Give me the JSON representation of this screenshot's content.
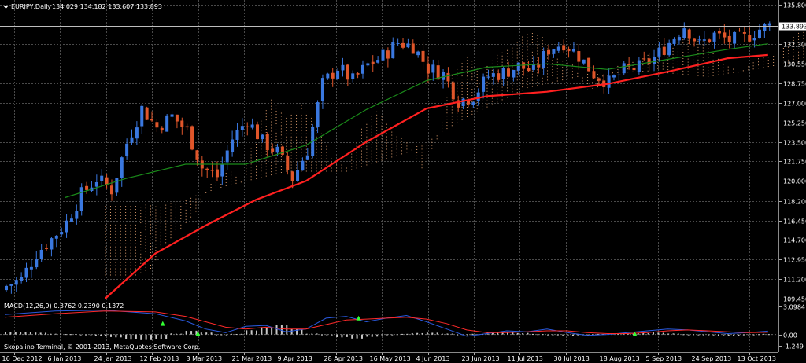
{
  "symbol_header": {
    "symbol": "EURJPY,Daily",
    "values": "134.029 134.182 133.607 133.893"
  },
  "macd_header": "MACD(12,26,9) 0.3762 0.2390 0.1372",
  "copyright": "Skopalino Terminal, © 2001-2013, MetaQuotes Software Corp.",
  "colors": {
    "background": "#000000",
    "grid": "#4a4a4a",
    "bull": "#3a78e0",
    "bear": "#e0562a",
    "ma_fast": "#1a8a1a",
    "ma_slow": "#ff2020",
    "cloud": "#e0a070",
    "macd_main": "#2a5ae0",
    "macd_signal": "#ff2a2a",
    "macd_hist": "#c8c8c8",
    "arrow": "#33ff33"
  },
  "chart_data": [
    {
      "type": "candlestick",
      "title": "EURJPY,Daily",
      "ylim": [
        109.45,
        135.8
      ],
      "y_ticks": [
        "135.800",
        "132.300",
        "130.550",
        "128.750",
        "127.000",
        "125.250",
        "123.500",
        "121.750",
        "120.000",
        "118.200",
        "116.450",
        "114.700",
        "112.950",
        "111.200",
        "109.450"
      ],
      "current_price": "133.893",
      "x_ticks": [
        "16 Dec 2012",
        "6 Jan 2013",
        "24 Jan 2013",
        "12 Feb 2013",
        "3 Mar 2013",
        "21 Mar 2013",
        "9 Apr 2013",
        "28 Apr 2013",
        "16 May 2013",
        "4 Jun 2013",
        "23 Jun 2013",
        "11 Jul 2013",
        "30 Jul 2013",
        "18 Aug 2013",
        "5 Sep 2013",
        "24 Sep 2013",
        "13 Oct 2013"
      ],
      "close_path": [
        [
          0,
          110.6
        ],
        [
          3,
          111.2
        ],
        [
          6,
          113.5
        ],
        [
          9,
          114.8
        ],
        [
          12,
          116.3
        ],
        [
          15,
          118.8
        ],
        [
          18,
          120.2
        ],
        [
          21,
          119.2
        ],
        [
          24,
          123.4
        ],
        [
          27,
          126.5
        ],
        [
          30,
          124.8
        ],
        [
          33,
          125.8
        ],
        [
          36,
          124.5
        ],
        [
          39,
          121.2
        ],
        [
          42,
          120.4
        ],
        [
          45,
          123.8
        ],
        [
          48,
          125.5
        ],
        [
          51,
          123.5
        ],
        [
          54,
          122.6
        ],
        [
          57,
          120.2
        ],
        [
          60,
          122.8
        ],
        [
          63,
          128.7
        ],
        [
          66,
          130.2
        ],
        [
          69,
          129.0
        ],
        [
          72,
          130.4
        ],
        [
          75,
          131.2
        ],
        [
          78,
          132.4
        ],
        [
          81,
          132.1
        ],
        [
          84,
          130.1
        ],
        [
          87,
          129.6
        ],
        [
          90,
          127.2
        ],
        [
          93,
          127.6
        ],
        [
          96,
          129.4
        ],
        [
          99,
          129.7
        ],
        [
          102,
          130.3
        ],
        [
          105,
          129.8
        ],
        [
          108,
          131.8
        ],
        [
          111,
          132.4
        ],
        [
          114,
          131.2
        ],
        [
          117,
          129.6
        ],
        [
          120,
          128.8
        ],
        [
          123,
          129.9
        ],
        [
          126,
          130.2
        ],
        [
          129,
          131.0
        ],
        [
          132,
          132.4
        ],
        [
          135,
          133.9
        ],
        [
          138,
          132.2
        ],
        [
          141,
          133.1
        ],
        [
          144,
          132.6
        ],
        [
          147,
          132.8
        ],
        [
          150,
          133.6
        ],
        [
          152,
          133.9
        ]
      ],
      "forecast_end_index": 176,
      "ma_fast": [
        [
          12,
          118.5
        ],
        [
          24,
          120.2
        ],
        [
          36,
          121.5
        ],
        [
          48,
          121.5
        ],
        [
          60,
          123.2
        ],
        [
          72,
          126.4
        ],
        [
          84,
          129.0
        ],
        [
          96,
          130.2
        ],
        [
          108,
          130.5
        ],
        [
          120,
          130.0
        ],
        [
          132,
          130.9
        ],
        [
          144,
          131.8
        ],
        [
          152,
          132.3
        ]
      ],
      "ma_slow": [
        [
          20,
          109.45
        ],
        [
          30,
          113.5
        ],
        [
          40,
          116.0
        ],
        [
          50,
          118.3
        ],
        [
          60,
          120.0
        ],
        [
          72,
          123.5
        ],
        [
          84,
          126.5
        ],
        [
          96,
          127.6
        ],
        [
          108,
          128.0
        ],
        [
          120,
          128.7
        ],
        [
          132,
          129.8
        ],
        [
          144,
          131.0
        ],
        [
          152,
          131.3
        ]
      ]
    },
    {
      "type": "line",
      "title": "MACD(12,26,9) 0.3762 0.2390 0.1372",
      "ylim": [
        -1.249,
        3.0984
      ],
      "y_ticks": [
        "3.0984",
        "0.00",
        "-1.249"
      ],
      "series": [
        {
          "name": "main",
          "values": [
            [
              0,
              2.2
            ],
            [
              10,
              2.6
            ],
            [
              20,
              2.7
            ],
            [
              30,
              2.3
            ],
            [
              36,
              1.5
            ],
            [
              40,
              0.6
            ],
            [
              44,
              0.2
            ],
            [
              48,
              0.9
            ],
            [
              52,
              1.0
            ],
            [
              56,
              0.3
            ],
            [
              60,
              0.6
            ],
            [
              64,
              1.8
            ],
            [
              68,
              2.0
            ],
            [
              72,
              1.4
            ],
            [
              76,
              1.8
            ],
            [
              80,
              2.1
            ],
            [
              84,
              1.4
            ],
            [
              88,
              0.6
            ],
            [
              92,
              -0.2
            ],
            [
              96,
              0.1
            ],
            [
              100,
              0.4
            ],
            [
              104,
              0.3
            ],
            [
              108,
              0.6
            ],
            [
              112,
              0.2
            ],
            [
              116,
              -0.1
            ],
            [
              120,
              0.0
            ],
            [
              124,
              0.2
            ],
            [
              128,
              0.4
            ],
            [
              132,
              0.6
            ],
            [
              136,
              0.5
            ],
            [
              140,
              0.3
            ],
            [
              144,
              0.1
            ],
            [
              148,
              0.2
            ],
            [
              152,
              0.37
            ]
          ]
        },
        {
          "name": "signal",
          "values": [
            [
              0,
              1.9
            ],
            [
              10,
              2.3
            ],
            [
              20,
              2.6
            ],
            [
              30,
              2.5
            ],
            [
              36,
              2.0
            ],
            [
              40,
              1.4
            ],
            [
              44,
              0.8
            ],
            [
              48,
              0.6
            ],
            [
              52,
              0.8
            ],
            [
              56,
              0.6
            ],
            [
              60,
              0.6
            ],
            [
              64,
              1.1
            ],
            [
              68,
              1.6
            ],
            [
              72,
              1.7
            ],
            [
              76,
              1.8
            ],
            [
              80,
              1.9
            ],
            [
              84,
              1.7
            ],
            [
              88,
              1.2
            ],
            [
              92,
              0.5
            ],
            [
              96,
              0.2
            ],
            [
              100,
              0.2
            ],
            [
              104,
              0.3
            ],
            [
              108,
              0.4
            ],
            [
              112,
              0.4
            ],
            [
              116,
              0.2
            ],
            [
              120,
              0.1
            ],
            [
              124,
              0.1
            ],
            [
              128,
              0.2
            ],
            [
              132,
              0.4
            ],
            [
              136,
              0.5
            ],
            [
              140,
              0.4
            ],
            [
              144,
              0.3
            ],
            [
              148,
              0.2
            ],
            [
              152,
              0.24
            ]
          ]
        }
      ],
      "histogram": [
        0.3,
        0.25,
        0.2,
        0.1,
        0.05,
        -0.05,
        -0.15,
        -0.3,
        -0.55,
        -0.6,
        -0.5,
        0.1,
        0.4,
        0.2,
        0.0,
        0.05,
        0.45,
        0.8,
        1.05,
        0.6,
        0.1,
        -0.1,
        -0.3,
        -0.45,
        -0.25,
        0.0,
        0.05,
        0.15,
        0.2,
        0.1,
        0.0,
        0.05,
        0.25,
        0.3,
        0.15,
        0.05,
        -0.05,
        -0.1,
        -0.05,
        0.05,
        0.1,
        0.1,
        0.15,
        0.2,
        0.1,
        0.0,
        -0.05,
        -0.1,
        -0.15,
        -0.05,
        0.05,
        0.14
      ]
    }
  ]
}
